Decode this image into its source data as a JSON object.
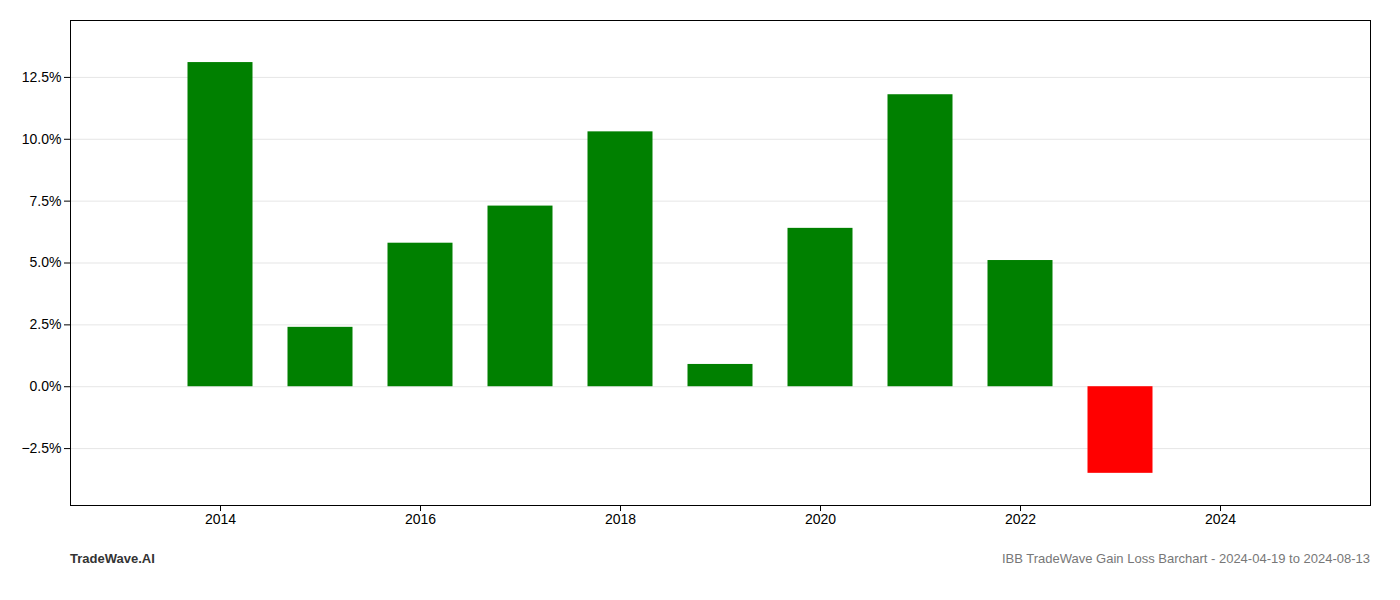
{
  "chart_data": {
    "type": "bar",
    "title": "IBB TradeWave Gain Loss Barchart - 2024-04-19 to 2024-08-13",
    "annotations": [
      "TradeWave.AI"
    ],
    "x": [
      2014,
      2015,
      2016,
      2017,
      2018,
      2019,
      2020,
      2021,
      2022,
      2023
    ],
    "values": [
      0.131,
      0.024,
      0.058,
      0.073,
      0.103,
      0.009,
      0.064,
      0.118,
      0.051,
      -0.035
    ],
    "colors": [
      "#008000",
      "#008000",
      "#008000",
      "#008000",
      "#008000",
      "#008000",
      "#008000",
      "#008000",
      "#008000",
      "#ff0000"
    ],
    "xlim": [
      2012.5,
      2025.5
    ],
    "xticks": [
      2014,
      2016,
      2018,
      2020,
      2022,
      2024
    ],
    "ylim": [
      -0.048,
      0.148
    ],
    "yticks": [
      {
        "value": -0.025,
        "label": "−2.5%"
      },
      {
        "value": 0.0,
        "label": "0.0%"
      },
      {
        "value": 0.025,
        "label": "2.5%"
      },
      {
        "value": 0.05,
        "label": "5.0%"
      },
      {
        "value": 0.075,
        "label": "7.5%"
      },
      {
        "value": 0.1,
        "label": "10.0%"
      },
      {
        "value": 0.125,
        "label": "12.5%"
      }
    ],
    "grid": true
  }
}
